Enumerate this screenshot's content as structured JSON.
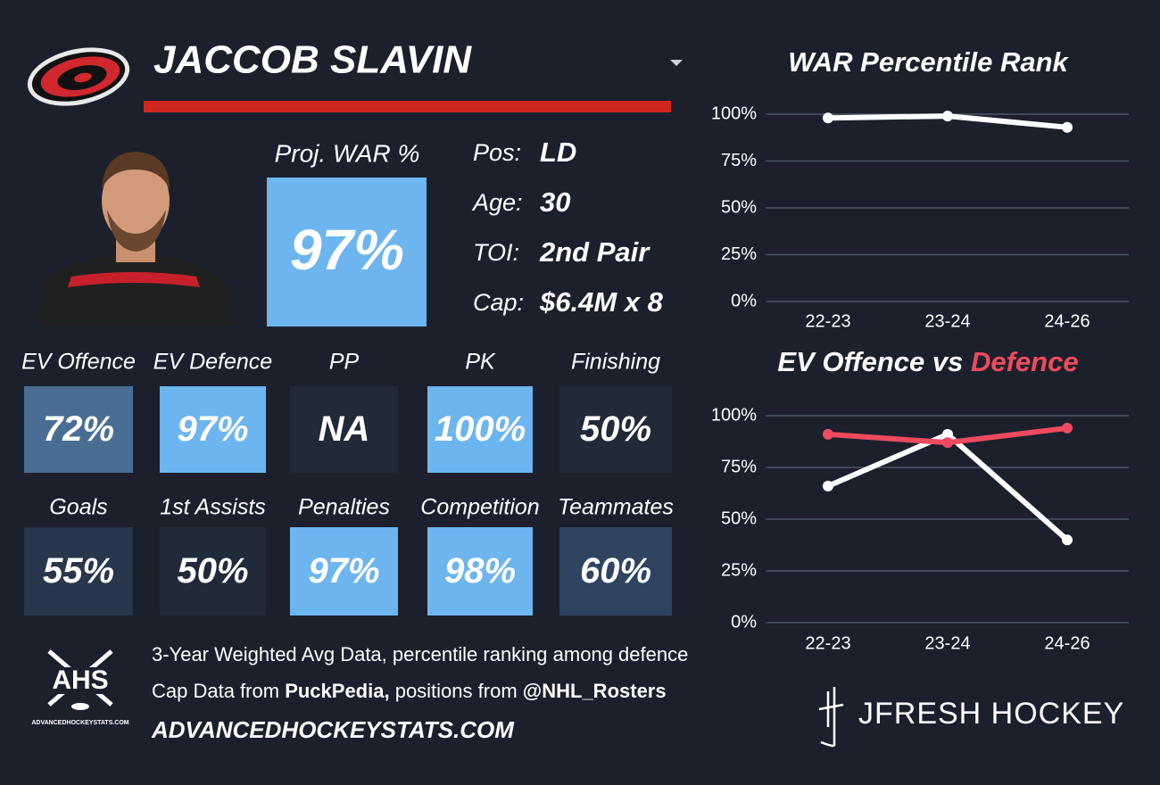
{
  "header": {
    "name": "JACCOB SLAVIN"
  },
  "card": {
    "proj_war_label": "Proj. WAR %",
    "proj_war_value": "97%",
    "proj_war_color": "#6db5ef",
    "info": [
      {
        "label": "Pos:",
        "value": "LD"
      },
      {
        "label": "Age:",
        "value": "30"
      },
      {
        "label": "TOI:",
        "value": "2nd Pair"
      },
      {
        "label": "Cap:",
        "value": "$6.4M x 8"
      }
    ]
  },
  "tiles": [
    {
      "label": "EV Offence",
      "value": "72%",
      "color": "#4a6e93"
    },
    {
      "label": "EV Defence",
      "value": "97%",
      "color": "#6db5ef"
    },
    {
      "label": "PP",
      "value": "NA",
      "color": "#202a38"
    },
    {
      "label": "PK",
      "value": "100%",
      "color": "#6db5ef"
    },
    {
      "label": "Finishing",
      "value": "50%",
      "color": "#202a38"
    },
    {
      "label": "Goals",
      "value": "55%",
      "color": "#28374c"
    },
    {
      "label": "1st Assists",
      "value": "50%",
      "color": "#202a38"
    },
    {
      "label": "Penalties",
      "value": "97%",
      "color": "#6db5ef"
    },
    {
      "label": "Competition",
      "value": "98%",
      "color": "#6db5ef"
    },
    {
      "label": "Teammates",
      "value": "60%",
      "color": "#2e4460"
    }
  ],
  "footer": {
    "note": "3-Year Weighted Avg Data, percentile ranking among defence",
    "source_parts": [
      "Cap Data from",
      "PuckPedia,",
      "positions from",
      "@NHL_Rosters"
    ],
    "site": "ADVANCEDHOCKEYSTATS.COM",
    "logo_text": "AHS",
    "logo_sub": "ADVANCEDHOCKEYSTATS.COM",
    "brand": "JFRESH HOCKEY"
  },
  "chart_data": [
    {
      "type": "line",
      "title": "WAR Percentile Rank",
      "categories": [
        "22-23",
        "23-24",
        "24-26"
      ],
      "series": [
        {
          "color": "#ffffff",
          "values": [
            98,
            99,
            93
          ]
        }
      ],
      "ylim": [
        0,
        100
      ],
      "yticks": [
        {
          "value": 0,
          "label": "0%"
        },
        {
          "value": 25,
          "label": "25%"
        },
        {
          "value": 50,
          "label": "50%"
        },
        {
          "value": 75,
          "label": "75%"
        },
        {
          "value": 100,
          "label": "100%"
        }
      ],
      "grid": true
    },
    {
      "type": "line",
      "title": "EV Offence vs",
      "title_highlight": "Defence",
      "title_highlight_color": "#ef4a5e",
      "categories": [
        "22-23",
        "23-24",
        "24-26"
      ],
      "series": [
        {
          "color": "#ffffff",
          "values": [
            66,
            91,
            40
          ]
        },
        {
          "color": "#ef4a5e",
          "values": [
            91,
            87,
            94
          ]
        }
      ],
      "ylim": [
        0,
        100
      ],
      "yticks": [
        {
          "value": 0,
          "label": "0%"
        },
        {
          "value": 25,
          "label": "25%"
        },
        {
          "value": 50,
          "label": "50%"
        },
        {
          "value": 75,
          "label": "75%"
        },
        {
          "value": 100,
          "label": "100%"
        }
      ],
      "grid": true
    }
  ]
}
